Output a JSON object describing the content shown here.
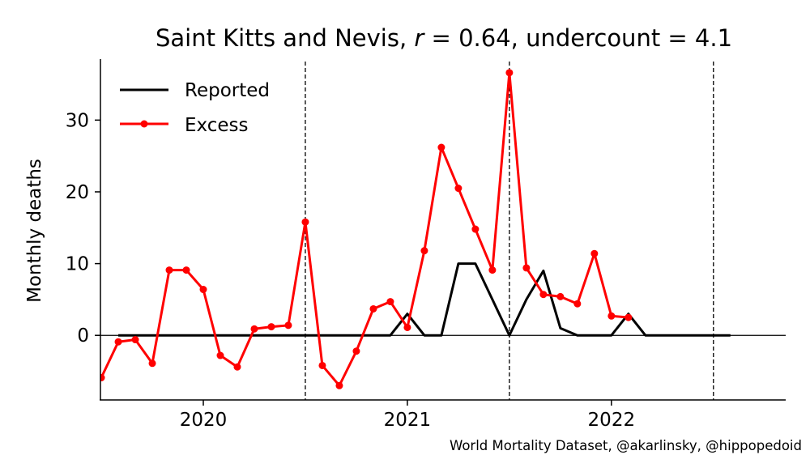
{
  "chart_data": {
    "type": "line",
    "title": {
      "prefix": "Saint Kitts and Nevis, ",
      "r_symbol": "r",
      "r_part": " = 0.64, ",
      "undercount_part": "undercount = 4.1"
    },
    "xlabel": "",
    "ylabel": "Monthly deaths",
    "x_ticks": [
      {
        "label": "2020",
        "x": "2020-01"
      },
      {
        "label": "2021",
        "x": "2021-01"
      },
      {
        "label": "2022",
        "x": "2022-01"
      }
    ],
    "y_ticks": [
      0,
      10,
      20,
      30
    ],
    "xlim": [
      "2019-07",
      "2022-11"
    ],
    "ylim": [
      -9,
      38.5
    ],
    "grid": false,
    "legend": "top-left",
    "vlines": [
      "2020-07",
      "2021-07",
      "2022-07"
    ],
    "hline": 0,
    "series": [
      {
        "name": "Reported",
        "color": "#000000",
        "markers": false,
        "x": [
          "2019-08",
          "2019-09",
          "2019-10",
          "2019-11",
          "2019-12",
          "2020-01",
          "2020-02",
          "2020-03",
          "2020-04",
          "2020-05",
          "2020-06",
          "2020-07",
          "2020-08",
          "2020-09",
          "2020-10",
          "2020-11",
          "2020-12",
          "2021-01",
          "2021-02",
          "2021-03",
          "2021-04",
          "2021-05",
          "2021-06",
          "2021-07",
          "2021-08",
          "2021-09",
          "2021-10",
          "2021-11",
          "2021-12",
          "2022-01",
          "2022-02",
          "2022-03",
          "2022-04",
          "2022-05",
          "2022-06",
          "2022-07",
          "2022-08"
        ],
        "values": [
          0,
          0,
          0,
          0,
          0,
          0,
          0,
          0,
          0,
          0,
          0,
          0,
          0,
          0,
          0,
          0,
          0,
          3,
          0,
          0,
          10,
          10,
          5,
          0,
          5,
          9,
          1,
          0,
          0,
          0,
          3,
          0,
          0,
          0,
          0,
          0,
          0
        ]
      },
      {
        "name": "Excess",
        "color": "#ff0000",
        "markers": true,
        "x": [
          "2019-07",
          "2019-08",
          "2019-09",
          "2019-10",
          "2019-11",
          "2019-12",
          "2020-01",
          "2020-02",
          "2020-03",
          "2020-04",
          "2020-05",
          "2020-06",
          "2020-07",
          "2020-08",
          "2020-09",
          "2020-10",
          "2020-11",
          "2020-12",
          "2021-01",
          "2021-02",
          "2021-03",
          "2021-04",
          "2021-05",
          "2021-06",
          "2021-07",
          "2021-08",
          "2021-09",
          "2021-10",
          "2021-11",
          "2021-12",
          "2022-01",
          "2022-02"
        ],
        "values": [
          -5.9,
          -0.9,
          -0.6,
          -3.9,
          9.1,
          9.1,
          6.4,
          -2.8,
          -4.4,
          0.9,
          1.2,
          1.4,
          15.8,
          -4.2,
          -7.0,
          -2.2,
          3.7,
          4.7,
          1.1,
          11.8,
          26.2,
          20.5,
          14.8,
          9.1,
          36.6,
          9.4,
          5.7,
          5.4,
          4.4,
          11.4,
          2.7,
          2.5
        ]
      }
    ]
  },
  "credit": "World Mortality Dataset, @akarlinsky, @hippopedoid"
}
